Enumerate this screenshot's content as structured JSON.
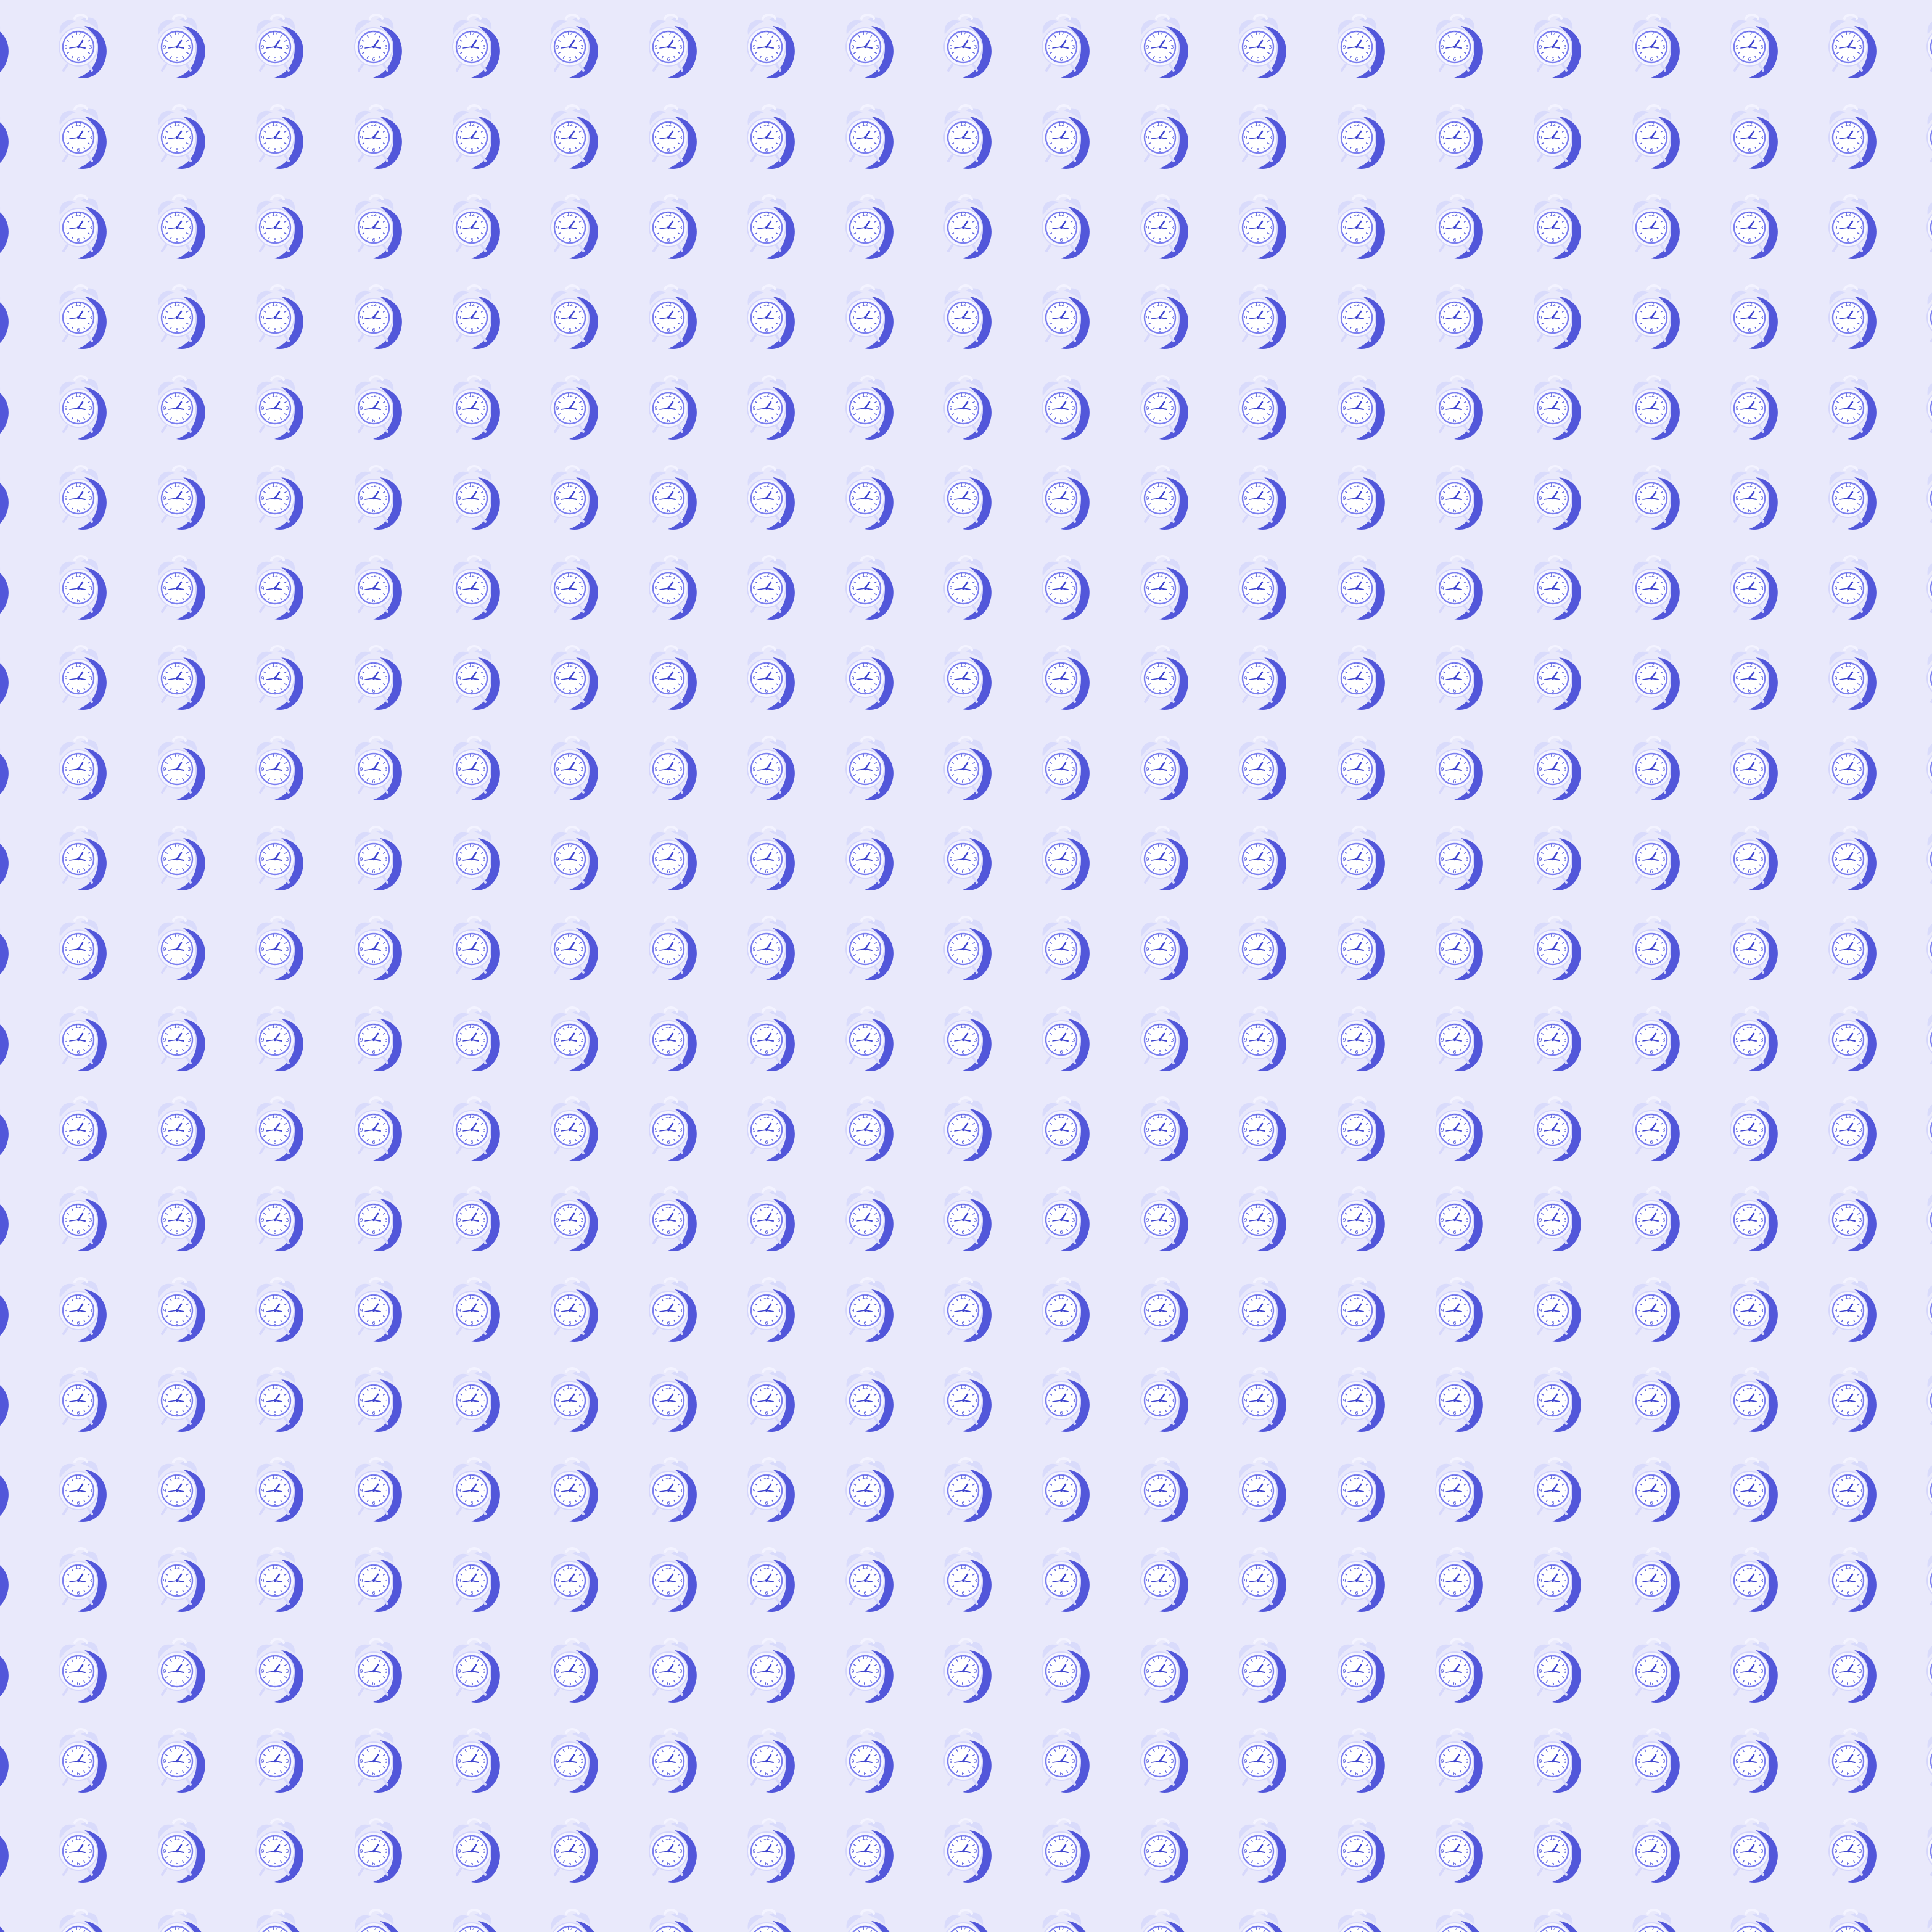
{
  "background": {
    "pattern_icon": "alarm-clock-icon",
    "colors": {
      "background": "#e9e9fb",
      "clock_face": "#ffffff",
      "clock_rim": "#f6f6ff",
      "shadow": "#4a4fd8",
      "hand": "#3f45cf",
      "numerals": "#5a60dd",
      "bells": "#d9dbfb"
    },
    "clock_face_numerals": [
      "12",
      "3",
      "6",
      "9"
    ]
  }
}
